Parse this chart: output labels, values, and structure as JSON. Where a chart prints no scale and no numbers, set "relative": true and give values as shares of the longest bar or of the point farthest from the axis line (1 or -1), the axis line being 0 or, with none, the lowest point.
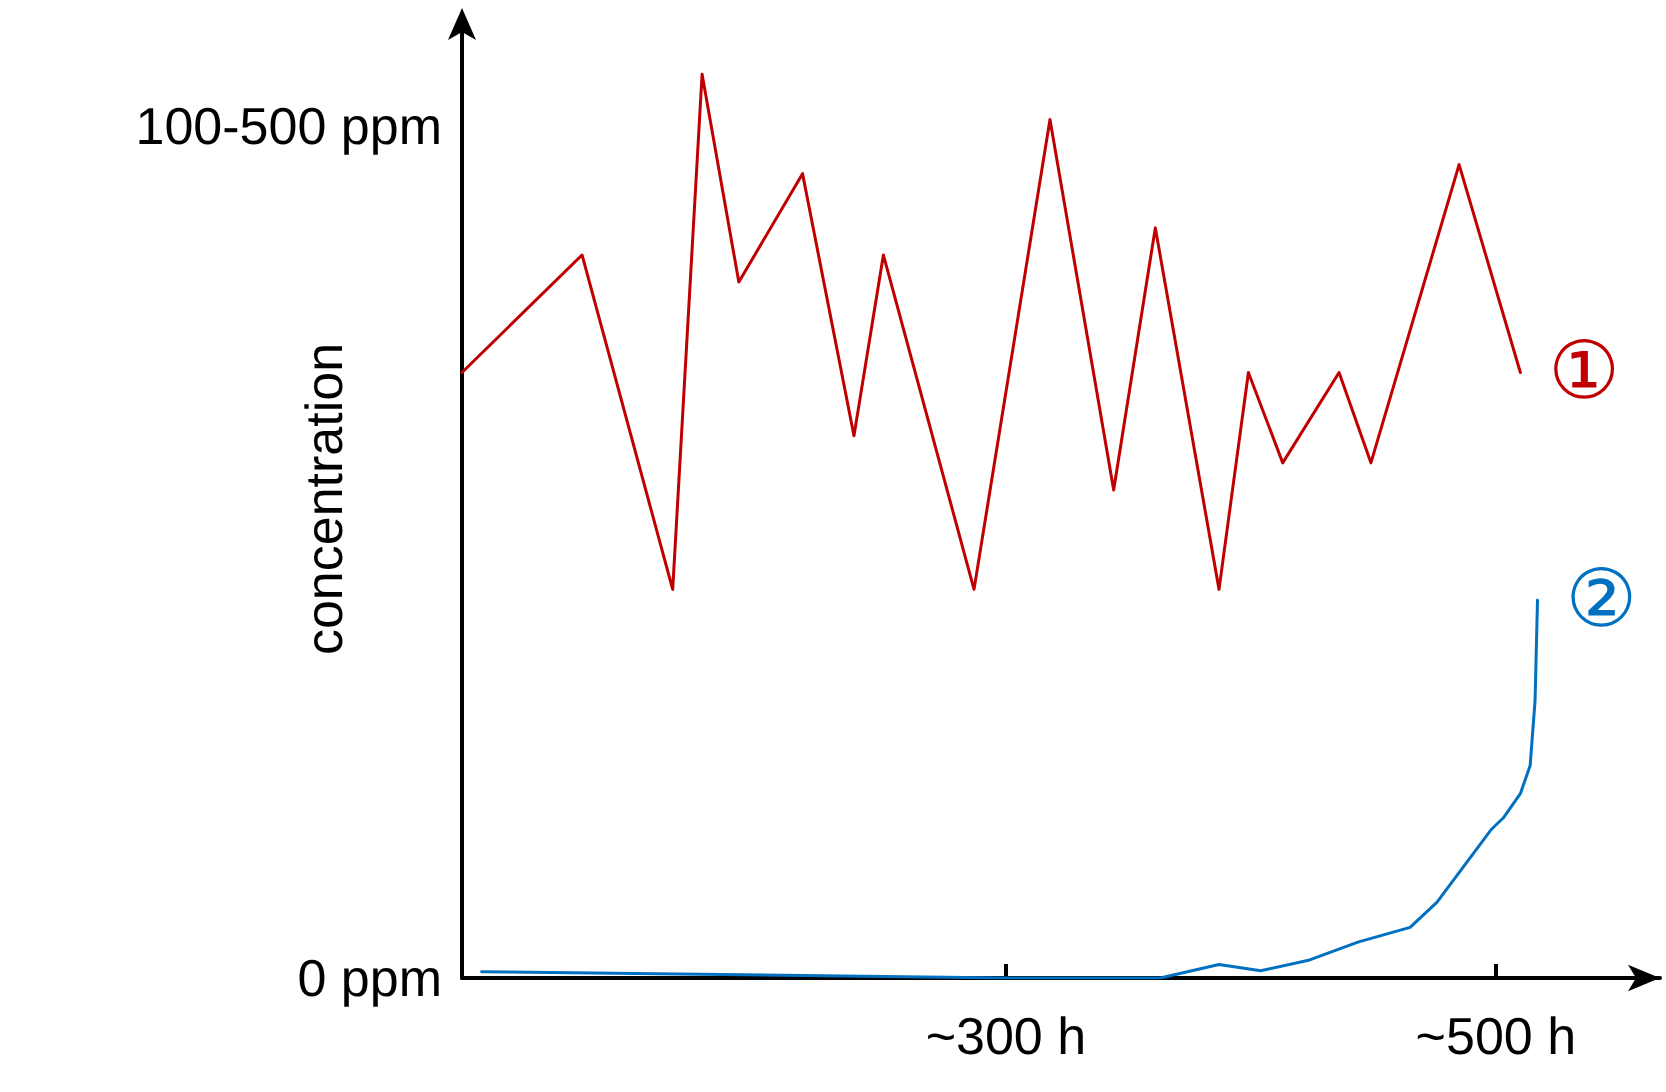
{
  "chart_data": {
    "type": "line",
    "ylabel": "concentration",
    "xlim": [
      78,
      567
    ],
    "relative": true,
    "xticks": [
      {
        "value": 300,
        "label": "~300 h"
      },
      {
        "value": 500,
        "label": "~500 h"
      }
    ],
    "annotations": [
      "0 ppm",
      "100-500 ppm"
    ],
    "grid": false,
    "marker": "none",
    "line_style": "solid",
    "series": [
      {
        "name": "①",
        "color": "#c00000",
        "x": [
          78,
          127,
          164,
          176,
          191,
          217,
          238,
          250,
          287,
          318,
          344,
          361,
          387,
          399,
          413,
          436,
          449,
          485,
          510
        ],
        "values": [
          0.67,
          0.8,
          0.43,
          1,
          0.77,
          0.89,
          0.6,
          0.8,
          0.43,
          0.95,
          0.54,
          0.83,
          0.43,
          0.67,
          0.57,
          0.67,
          0.57,
          0.9,
          0.67
        ]
      },
      {
        "name": "②",
        "color": "#0070c0",
        "x": [
          86,
          300,
          363,
          387,
          404,
          424,
          444,
          465,
          476,
          498,
          503,
          510,
          514,
          516,
          517
        ],
        "values": [
          0.007,
          0,
          0,
          0.015,
          0.008,
          0.02,
          0.04,
          0.056,
          0.084,
          0.164,
          0.177,
          0.204,
          0.235,
          0.307,
          0.418
        ]
      }
    ]
  }
}
